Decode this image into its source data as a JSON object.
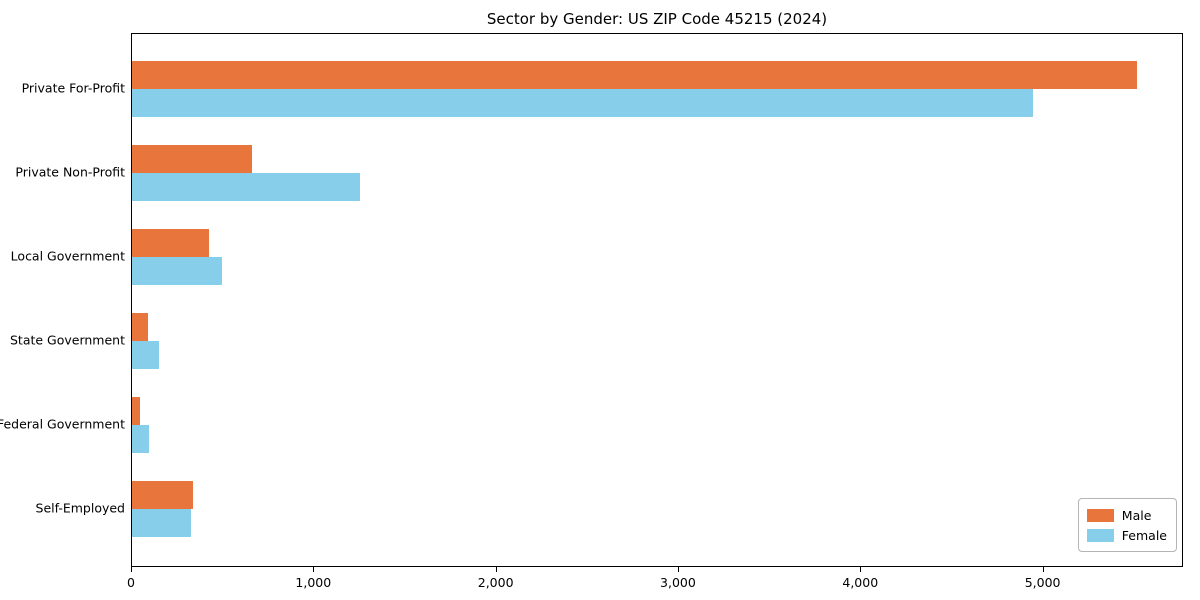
{
  "chart_data": {
    "type": "bar",
    "orientation": "horizontal",
    "title": "Sector by Gender: US ZIP Code 45215 (2024)",
    "categories": [
      "Private For-Profit",
      "Private Non-Profit",
      "Local Government",
      "State Government",
      "Federal Government",
      "Self-Employed"
    ],
    "series": [
      {
        "name": "Male",
        "color": "#e8763c",
        "values": [
          5510,
          660,
          425,
          90,
          45,
          335
        ]
      },
      {
        "name": "Female",
        "color": "#87ceeb",
        "values": [
          4940,
          1250,
          495,
          150,
          95,
          325
        ]
      }
    ],
    "xlabel": "",
    "ylabel": "",
    "xlim": [
      0,
      5770
    ],
    "xticks": [
      {
        "value": 0,
        "label": "0"
      },
      {
        "value": 1000,
        "label": "1,000"
      },
      {
        "value": 2000,
        "label": "2,000"
      },
      {
        "value": 3000,
        "label": "3,000"
      },
      {
        "value": 4000,
        "label": "4,000"
      },
      {
        "value": 5000,
        "label": "5,000"
      }
    ],
    "grid": false,
    "legend": {
      "position": "lower right"
    }
  }
}
